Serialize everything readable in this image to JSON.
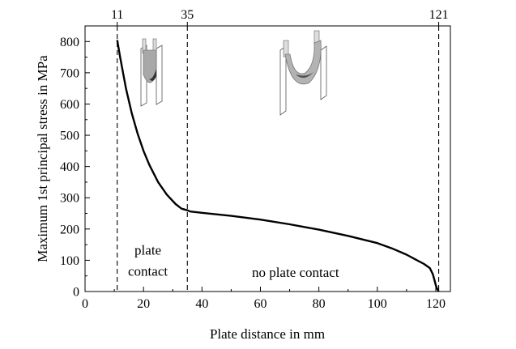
{
  "chart_data": {
    "type": "line",
    "title": "",
    "xlabel": "Plate distance in mm",
    "ylabel": "Maximum 1st principal stress in MPa",
    "xlim": [
      0,
      125
    ],
    "ylim": [
      0,
      850
    ],
    "x_ticks": [
      0,
      20,
      40,
      60,
      80,
      100,
      120
    ],
    "y_ticks": [
      0,
      100,
      200,
      300,
      400,
      500,
      600,
      700,
      800
    ],
    "grid": false,
    "series": [
      {
        "name": "",
        "color": "#000000",
        "x": [
          11,
          12,
          14,
          16,
          18,
          20,
          22,
          25,
          28,
          31,
          33,
          35,
          36,
          40,
          50,
          60,
          70,
          80,
          90,
          100,
          105,
          110,
          113,
          116,
          118,
          119,
          119.6,
          120,
          120.5,
          121
        ],
        "y": [
          805,
          750,
          650,
          570,
          505,
          450,
          405,
          350,
          310,
          280,
          265,
          260,
          256,
          252,
          242,
          230,
          215,
          198,
          178,
          155,
          138,
          118,
          103,
          88,
          75,
          55,
          35,
          20,
          8,
          0
        ]
      }
    ],
    "vlines": [
      {
        "x": 11,
        "label": "11"
      },
      {
        "x": 35,
        "label": "35"
      },
      {
        "x": 121,
        "label": "121"
      }
    ],
    "annotations": [
      {
        "lines": [
          "plate",
          "contact"
        ],
        "x": 21.5,
        "y": 118
      },
      {
        "lines": [
          "no plate contact"
        ],
        "x": 72,
        "y": 47
      }
    ]
  }
}
